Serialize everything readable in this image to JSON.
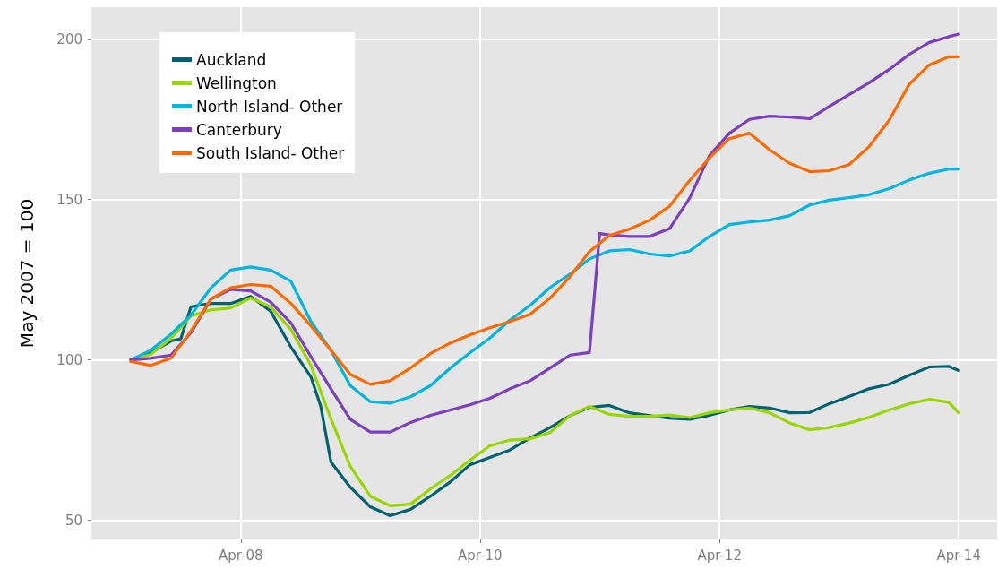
{
  "chart_data": {
    "type": "line",
    "ylabel": "May 2007 = 100",
    "x": [
      "2007-05",
      "2007-07",
      "2007-09",
      "2007-11",
      "2008-01",
      "2008-03",
      "2008-05",
      "2008-07",
      "2008-09",
      "2008-11",
      "2009-01",
      "2009-03",
      "2009-05",
      "2009-07",
      "2009-09",
      "2009-11",
      "2010-01",
      "2010-03",
      "2010-05",
      "2010-07",
      "2010-09",
      "2010-11",
      "2011-01",
      "2011-03",
      "2011-05",
      "2011-07",
      "2011-09",
      "2011-11",
      "2012-01",
      "2012-03",
      "2012-05",
      "2012-07",
      "2012-09",
      "2012-11",
      "2013-01",
      "2013-03",
      "2013-05",
      "2013-07",
      "2013-09",
      "2013-11",
      "2014-01",
      "2014-03",
      "2014-04"
    ],
    "series": [
      {
        "name": "Auckland",
        "color": "#006170",
        "x": [
          "2007-05",
          "2007-07",
          "2007-09",
          "2007-10",
          "2007-11",
          "2008-01",
          "2008-03",
          "2008-05",
          "2008-07",
          "2008-09",
          "2008-11",
          "2008-12",
          "2009-01",
          "2009-03",
          "2009-05",
          "2009-07",
          "2009-09",
          "2009-11",
          "2010-01",
          "2010-03",
          "2010-05",
          "2010-07",
          "2010-09",
          "2010-11",
          "2011-01",
          "2011-03",
          "2011-05",
          "2011-07",
          "2011-09",
          "2011-11",
          "2012-01",
          "2012-03",
          "2012-05",
          "2012-07",
          "2012-09",
          "2012-11",
          "2013-01",
          "2013-03",
          "2013-05",
          "2013-07",
          "2013-09",
          "2013-11",
          "2014-01",
          "2014-03",
          "2014-04"
        ],
        "values": [
          100,
          102.2,
          105.9,
          106.6,
          116.6,
          117.6,
          117.6,
          119.8,
          115.2,
          104,
          94.7,
          85.5,
          68.2,
          60.3,
          54.2,
          51.4,
          53.4,
          57.5,
          62,
          67.3,
          69.6,
          71.9,
          75.7,
          78.9,
          82.6,
          85.2,
          85.8,
          83.5,
          82.6,
          81.8,
          81.5,
          82.7,
          84.4,
          85.5,
          85,
          83.5,
          83.6,
          86.3,
          88.6,
          91,
          92.4,
          95.2,
          97.8,
          98,
          96.7
        ]
      },
      {
        "name": "Wellington",
        "color": "#99d600",
        "values": [
          100,
          101.7,
          106.7,
          113.7,
          115.6,
          116.2,
          119.3,
          116.5,
          109.5,
          98.3,
          81.6,
          66.8,
          57.5,
          54.5,
          55,
          59.8,
          64,
          68.7,
          73.2,
          75,
          75.4,
          77.4,
          82.6,
          85.5,
          83,
          82.4,
          82.4,
          82.8,
          82,
          83.5,
          84.4,
          85,
          83.5,
          80.3,
          78.2,
          78.9,
          80.3,
          82.1,
          84.4,
          86.3,
          87.7,
          86.8,
          83.5
        ]
      },
      {
        "name": "North Island- Other",
        "color": "#00b6e0",
        "values": [
          100,
          103,
          108,
          114,
          122.5,
          128,
          129,
          128,
          124.5,
          112,
          103,
          92,
          87,
          86.5,
          88.5,
          92,
          97.5,
          102.2,
          106.8,
          112.4,
          117,
          122.6,
          126.8,
          131.5,
          134,
          134.4,
          133,
          132.4,
          134,
          138.5,
          142.2,
          143,
          143.6,
          145,
          148.3,
          149.8,
          150.6,
          151.5,
          153.4,
          156.1,
          158.2,
          159.5,
          159.5
        ]
      },
      {
        "name": "Canterbury",
        "color": "#7b3fbf",
        "x": [
          "2007-05",
          "2007-07",
          "2007-09",
          "2007-11",
          "2008-01",
          "2008-03",
          "2008-05",
          "2008-07",
          "2008-09",
          "2008-11",
          "2009-01",
          "2009-03",
          "2009-05",
          "2009-07",
          "2009-09",
          "2009-11",
          "2010-01",
          "2010-03",
          "2010-05",
          "2010-07",
          "2010-09",
          "2010-11",
          "2011-01",
          "2011-03",
          "2011-04",
          "2011-05",
          "2011-07",
          "2011-09",
          "2011-11",
          "2012-01",
          "2012-03",
          "2012-05",
          "2012-07",
          "2012-09",
          "2012-11",
          "2013-01",
          "2013-03",
          "2013-05",
          "2013-07",
          "2013-09",
          "2013-11",
          "2014-01",
          "2014-03",
          "2014-04"
        ],
        "values": [
          100,
          100.5,
          101.5,
          108.5,
          119,
          122,
          121.5,
          118,
          111.5,
          101,
          91,
          81.5,
          77.5,
          77.5,
          80.5,
          82.7,
          84.4,
          86,
          88,
          91,
          93.5,
          97.5,
          101.5,
          102.3,
          139.4,
          139,
          138.5,
          138.5,
          141,
          150.5,
          163.7,
          170.7,
          175,
          176,
          175.7,
          175.2,
          179,
          182.7,
          186.4,
          190.6,
          195.3,
          199,
          200.8,
          201.6
        ]
      },
      {
        "name": "South Island- Other",
        "color": "#ff6a00",
        "values": [
          99.5,
          98.3,
          100.5,
          109,
          119,
          122.5,
          123.5,
          123,
          117.6,
          110.6,
          103,
          95.5,
          92.4,
          93.5,
          97.5,
          102,
          105.3,
          107.8,
          110,
          112,
          114.2,
          119.3,
          126,
          133.8,
          138.8,
          140.8,
          143.6,
          148,
          156,
          163,
          169,
          170.7,
          165.5,
          161.3,
          158.7,
          159,
          160.9,
          166.5,
          174.8,
          186,
          192,
          194.5,
          194.5
        ]
      }
    ],
    "xlim": [
      "2007-01",
      "2014-07-27"
    ],
    "xticks": [
      {
        "value": "2008-04",
        "label": "Apr-08"
      },
      {
        "value": "2010-04",
        "label": "Apr-10"
      },
      {
        "value": "2012-04",
        "label": "Apr-12"
      },
      {
        "value": "2014-04",
        "label": "Apr-14"
      }
    ],
    "ylim": [
      44,
      210
    ],
    "yticks": [
      50,
      100,
      150,
      200
    ],
    "grid": true,
    "legend": "top left",
    "marker": "none",
    "line_style": "solid"
  }
}
